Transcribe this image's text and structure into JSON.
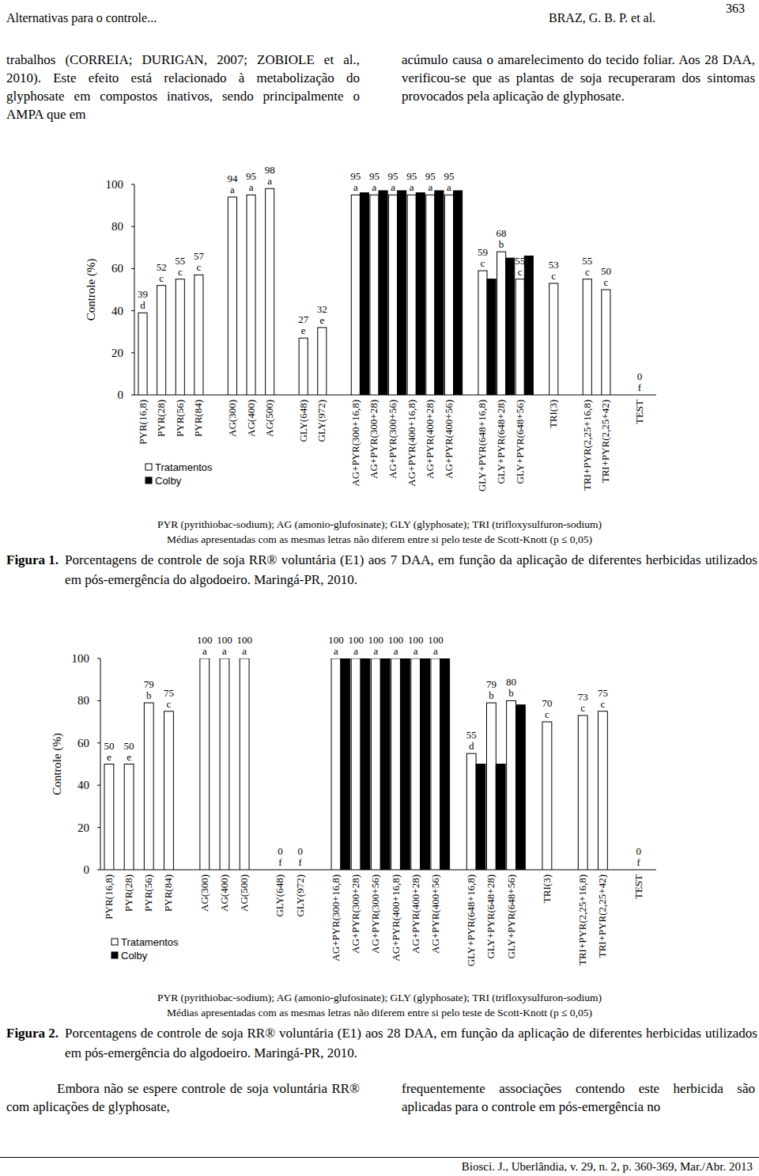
{
  "header": {
    "left": "Alternativas para o controle...",
    "center": "BRAZ, G. B. P. et al.",
    "page": "363"
  },
  "top_columns": [
    "trabalhos (CORREIA; DURIGAN, 2007; ZOBIOLE et al., 2010). Este efeito está relacionado à metabolização do glyphosate em compostos inativos, sendo principalmente o AMPA que em",
    "acúmulo causa o amarelecimento do tecido foliar. Aos 28 DAA, verificou-se que as plantas de soja recuperaram dos sintomas provocados pela aplicação de glyphosate."
  ],
  "chart_data": [
    {
      "type": "bar",
      "y_label": "Controle (%)",
      "categories": [
        "PYR(16,8)",
        "PYR(28)",
        "PYR(56)",
        "PYR(84)",
        "AG(300)",
        "AG(400)",
        "AG(500)",
        "GLY(648)",
        "GLY(972)",
        "AG+PYR(300+16,8)",
        "AG+PYR(300+28)",
        "AG+PYR(300+56)",
        "AG+PYR(400+16,8)",
        "AG+PYR(400+28)",
        "AG+PYR(400+56)",
        "GLY+PYR(648+16,8)",
        "GLY+PYR(648+28)",
        "GLY+PYR(648+56)",
        "TRI(3)",
        "TRI+PYR(2,25+16,8)",
        "TRI+PYR(2,25+42)",
        "TEST"
      ],
      "ylim": [
        0,
        100
      ],
      "yticks": [
        0,
        20,
        40,
        60,
        80,
        100
      ],
      "legend": "bottom-left",
      "series": [
        {
          "name": "Tratamentos",
          "color": "#ffffff",
          "data_labels": true,
          "values": [
            39,
            52,
            55,
            57,
            94,
            95,
            98,
            27,
            32,
            95,
            95,
            95,
            95,
            95,
            95,
            59,
            68,
            55,
            53,
            55,
            50,
            0
          ],
          "letters": [
            "d",
            "c",
            "c",
            "c",
            "a",
            "a",
            "a",
            "e",
            "e",
            "a",
            "a",
            "a",
            "a",
            "a",
            "a",
            "c",
            "b",
            "c",
            "c",
            "c",
            "c",
            "f"
          ]
        },
        {
          "name": "Colby",
          "color": "#000000",
          "data_labels": false,
          "values": [
            null,
            null,
            null,
            null,
            null,
            null,
            null,
            null,
            null,
            96,
            97,
            97,
            96,
            97,
            97,
            55,
            65,
            66,
            null,
            null,
            null,
            null
          ]
        }
      ],
      "notes": [
        "PYR (pyrithiobac-sodium); AG (amonio-glufosinate); GLY (glyphosate); TRI (trifloxysulfuron-sodium)",
        "Médias apresentadas com as mesmas letras não diferem entre si pelo teste de Scott-Knott (p ≤ 0,05)"
      ],
      "caption": {
        "label": "Figura 1.",
        "text": "Porcentagens de controle de soja RR® voluntária (E1) aos 7 DAA, em função da aplicação de diferentes herbicidas utilizados em pós-emergência do algodoeiro. Maringá-PR, 2010."
      }
    },
    {
      "type": "bar",
      "y_label": "Controle (%)",
      "categories": [
        "PYR(16,8)",
        "PYR(28)",
        "PYR(56)",
        "PYR(84)",
        "AG(300)",
        "AG(400)",
        "AG(500)",
        "GLY(648)",
        "GLY(972)",
        "AG+PYR(300+16,8)",
        "AG+PYR(300+28)",
        "AG+PYR(300+56)",
        "AG+PYR(400+16,8)",
        "AG+PYR(400+28)",
        "AG+PYR(400+56)",
        "GLY+PYR(648+16,8)",
        "GLY+PYR(648+28)",
        "GLY+PYR(648+56)",
        "TRI(3)",
        "TRI+PYR(2,25+16,8)",
        "TRI+PYR(2,25+42)",
        "TEST"
      ],
      "ylim": [
        0,
        100
      ],
      "yticks": [
        0,
        20,
        40,
        60,
        80,
        100
      ],
      "legend": "bottom-left",
      "series": [
        {
          "name": "Tratamentos",
          "color": "#ffffff",
          "data_labels": true,
          "values": [
            50,
            50,
            79,
            75,
            100,
            100,
            100,
            0,
            0,
            100,
            100,
            100,
            100,
            100,
            100,
            55,
            79,
            80,
            70,
            73,
            75,
            0
          ],
          "letters": [
            "e",
            "e",
            "b",
            "c",
            "a",
            "a",
            "a",
            "f",
            "f",
            "a",
            "a",
            "a",
            "a",
            "a",
            "a",
            "d",
            "b",
            "b",
            "c",
            "c",
            "c",
            "f"
          ]
        },
        {
          "name": "Colby",
          "color": "#000000",
          "data_labels": false,
          "values": [
            null,
            null,
            null,
            null,
            null,
            null,
            null,
            null,
            null,
            100,
            100,
            100,
            100,
            100,
            100,
            50,
            50,
            78,
            null,
            null,
            null,
            null
          ]
        }
      ],
      "notes": [
        "PYR (pyrithiobac-sodium); AG (amonio-glufosinate); GLY (glyphosate); TRI (trifloxysulfuron-sodium)",
        "Médias apresentadas com as mesmas letras não diferem entre si pelo teste de Scott-Knott (p ≤ 0,05)"
      ],
      "caption": {
        "label": "Figura 2.",
        "text": "Porcentagens de controle de soja RR® voluntária (E1) aos 28 DAA, em função da aplicação de diferentes herbicidas utilizados em pós-emergência do algodoeiro. Maringá-PR, 2010."
      }
    }
  ],
  "bottom_columns": [
    "Embora não se espere controle de soja voluntária RR® com aplicações de glyphosate,",
    "frequentemente associações contendo este herbicida são aplicadas para o controle em pós-emergência no"
  ],
  "footer": "Biosci. J., Uberlândia, v. 29, n. 2, p. 360-369, Mar./Abr. 2013"
}
